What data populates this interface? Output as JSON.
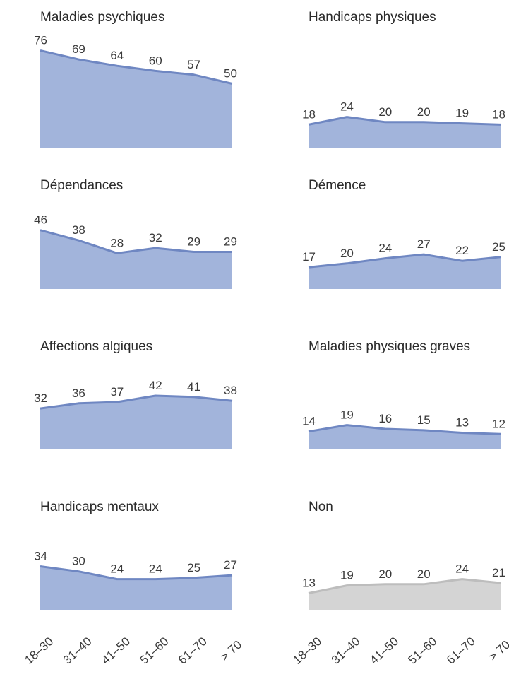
{
  "chart_data": {
    "type": "area",
    "x_categories": [
      "18–30",
      "31–40",
      "41–50",
      "51–60",
      "61–70",
      "> 70"
    ],
    "ylim": [
      0,
      80
    ],
    "grid": false,
    "colors": {
      "default_fill": "#a2b4db",
      "default_line": "#6f87c2",
      "gray_fill": "#d4d4d4",
      "gray_line": "#bdbdbd"
    },
    "panels": [
      {
        "title": "Maladies psychiques",
        "values": [
          76,
          69,
          64,
          60,
          57,
          50
        ],
        "color": "blue"
      },
      {
        "title": "Handicaps physiques",
        "values": [
          18,
          24,
          20,
          20,
          19,
          18
        ],
        "color": "blue"
      },
      {
        "title": "Dépendances",
        "values": [
          46,
          38,
          28,
          32,
          29,
          29
        ],
        "color": "blue"
      },
      {
        "title": "Démence",
        "values": [
          17,
          20,
          24,
          27,
          22,
          25
        ],
        "color": "blue"
      },
      {
        "title": "Affections algiques",
        "values": [
          32,
          36,
          37,
          42,
          41,
          38
        ],
        "color": "blue"
      },
      {
        "title": "Maladies physiques graves",
        "values": [
          14,
          19,
          16,
          15,
          13,
          12
        ],
        "color": "blue"
      },
      {
        "title": "Handicaps mentaux",
        "values": [
          34,
          30,
          24,
          24,
          25,
          27
        ],
        "color": "blue"
      },
      {
        "title": "Non",
        "values": [
          13,
          19,
          20,
          20,
          24,
          21
        ],
        "color": "gray"
      }
    ]
  }
}
